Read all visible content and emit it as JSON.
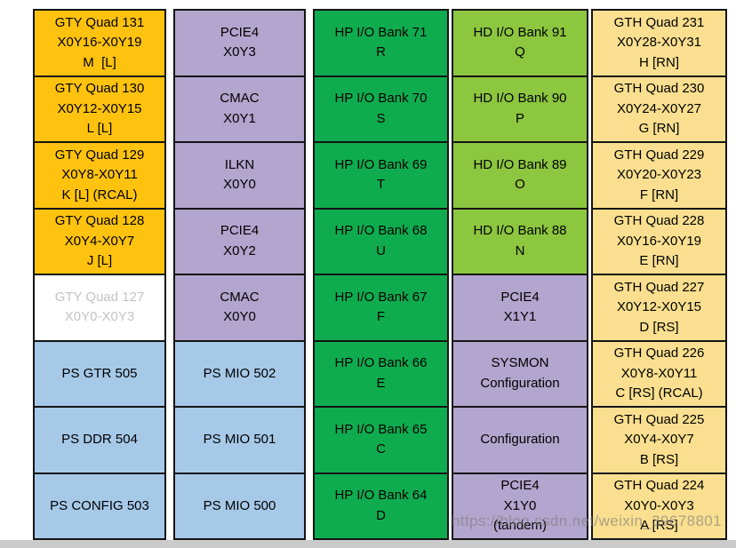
{
  "palette": {
    "orange": "#FFC20E",
    "purple": "#B2A5CE",
    "green": "#0FAC4F",
    "light_green": "#8DC63F",
    "tan": "#F9DF8F",
    "blue": "#A6C9E8",
    "disabled_bg": "#FFFFFF",
    "disabled_text": "#C3C3C3",
    "border": "#141414",
    "bottom_strip": "#CBCBCB"
  },
  "watermark": "https://blog.csdn.net/weixin_39678801",
  "columns": [
    {
      "name": "gty-ps-column",
      "cells": [
        {
          "lines": [
            "GTY Quad 131",
            "X0Y16-X0Y19",
            "M  [L]"
          ],
          "color": "orange"
        },
        {
          "lines": [
            "GTY Quad 130",
            "X0Y12-X0Y15",
            "L [L]"
          ],
          "color": "orange"
        },
        {
          "lines": [
            "GTY Quad 129",
            "X0Y8-X0Y11",
            "K [L] (RCAL)"
          ],
          "color": "orange"
        },
        {
          "lines": [
            "GTY Quad 128",
            "X0Y4-X0Y7",
            "J [L]"
          ],
          "color": "orange"
        },
        {
          "lines": [
            "GTY Quad 127",
            "X0Y0-X0Y3"
          ],
          "color": "disabled"
        },
        {
          "lines": [
            "PS GTR 505"
          ],
          "color": "blue"
        },
        {
          "lines": [
            "PS DDR 504"
          ],
          "color": "blue"
        },
        {
          "lines": [
            "PS CONFIG 503"
          ],
          "color": "blue"
        }
      ]
    },
    {
      "name": "hard-ip-ps-mio-column",
      "cells": [
        {
          "lines": [
            "PCIE4",
            "X0Y3"
          ],
          "color": "purple"
        },
        {
          "lines": [
            "CMAC",
            "X0Y1"
          ],
          "color": "purple"
        },
        {
          "lines": [
            "ILKN",
            "X0Y0"
          ],
          "color": "purple"
        },
        {
          "lines": [
            "PCIE4",
            "X0Y2"
          ],
          "color": "purple"
        },
        {
          "lines": [
            "CMAC",
            "X0Y0"
          ],
          "color": "purple"
        },
        {
          "lines": [
            "PS MIO 502"
          ],
          "color": "blue"
        },
        {
          "lines": [
            "PS MIO 501"
          ],
          "color": "blue"
        },
        {
          "lines": [
            "PS MIO 500"
          ],
          "color": "blue"
        }
      ]
    },
    {
      "name": "hp-io-column",
      "cells": [
        {
          "lines": [
            "HP I/O Bank 71",
            "R"
          ],
          "color": "green"
        },
        {
          "lines": [
            "HP I/O Bank 70",
            "S"
          ],
          "color": "green"
        },
        {
          "lines": [
            "HP I/O Bank 69",
            "T"
          ],
          "color": "green"
        },
        {
          "lines": [
            "HP I/O Bank 68",
            "U"
          ],
          "color": "green"
        },
        {
          "lines": [
            "HP I/O Bank 67",
            "F"
          ],
          "color": "green"
        },
        {
          "lines": [
            "HP I/O Bank 66",
            "E"
          ],
          "color": "green"
        },
        {
          "lines": [
            "HP I/O Bank 65",
            "C"
          ],
          "color": "green"
        },
        {
          "lines": [
            "HP I/O Bank 64",
            "D"
          ],
          "color": "green"
        }
      ]
    },
    {
      "name": "hd-io-config-column",
      "cells": [
        {
          "lines": [
            "HD I/O Bank 91",
            "Q"
          ],
          "color": "light_green"
        },
        {
          "lines": [
            "HD I/O Bank 90",
            "P"
          ],
          "color": "light_green"
        },
        {
          "lines": [
            "HD I/O Bank 89",
            "O"
          ],
          "color": "light_green"
        },
        {
          "lines": [
            "HD I/O Bank 88",
            "N"
          ],
          "color": "light_green"
        },
        {
          "lines": [
            "PCIE4",
            "X1Y1"
          ],
          "color": "purple"
        },
        {
          "lines": [
            "SYSMON",
            "Configuration"
          ],
          "color": "purple"
        },
        {
          "lines": [
            "Configuration"
          ],
          "color": "purple"
        },
        {
          "lines": [
            "PCIE4",
            "X1Y0",
            "(tandem)"
          ],
          "color": "purple"
        }
      ]
    },
    {
      "name": "gth-column",
      "cells": [
        {
          "lines": [
            "GTH Quad 231",
            "X0Y28-X0Y31",
            "H [RN]"
          ],
          "color": "tan"
        },
        {
          "lines": [
            "GTH Quad 230",
            "X0Y24-X0Y27",
            "G [RN]"
          ],
          "color": "tan"
        },
        {
          "lines": [
            "GTH Quad 229",
            "X0Y20-X0Y23",
            "F [RN]"
          ],
          "color": "tan"
        },
        {
          "lines": [
            "GTH Quad 228",
            "X0Y16-X0Y19",
            "E [RN]"
          ],
          "color": "tan"
        },
        {
          "lines": [
            "GTH Quad 227",
            "X0Y12-X0Y15",
            "D [RS]"
          ],
          "color": "tan"
        },
        {
          "lines": [
            "GTH Quad 226",
            "X0Y8-X0Y11",
            "C [RS] (RCAL)"
          ],
          "color": "tan"
        },
        {
          "lines": [
            "GTH Quad 225",
            "X0Y4-X0Y7",
            "B [RS]"
          ],
          "color": "tan"
        },
        {
          "lines": [
            "GTH Quad 224",
            "X0Y0-X0Y3",
            "A [RS]"
          ],
          "color": "tan"
        }
      ]
    }
  ]
}
